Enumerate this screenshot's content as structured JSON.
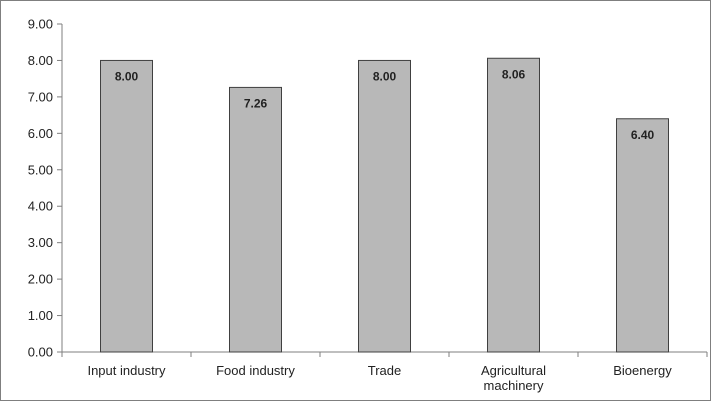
{
  "chart_data": {
    "type": "bar",
    "categories": [
      "Input industry",
      "Food industry",
      "Trade",
      "Agricultural\nmachinery",
      "Bioenergy"
    ],
    "values": [
      8.0,
      7.26,
      8.0,
      8.06,
      6.4
    ],
    "data_labels": [
      "8.00",
      "7.26",
      "8.00",
      "8.06",
      "6.40"
    ],
    "y_ticks": [
      "0.00",
      "1.00",
      "2.00",
      "3.00",
      "4.00",
      "5.00",
      "6.00",
      "7.00",
      "8.00",
      "9.00"
    ],
    "ylim": [
      0,
      9
    ],
    "title": "",
    "xlabel": "",
    "ylabel": "",
    "grid": false,
    "legend": "none",
    "bar_color": "#b8b8b8",
    "bar_edge_color": "#404040",
    "axis_color": "#7f7f7f"
  }
}
